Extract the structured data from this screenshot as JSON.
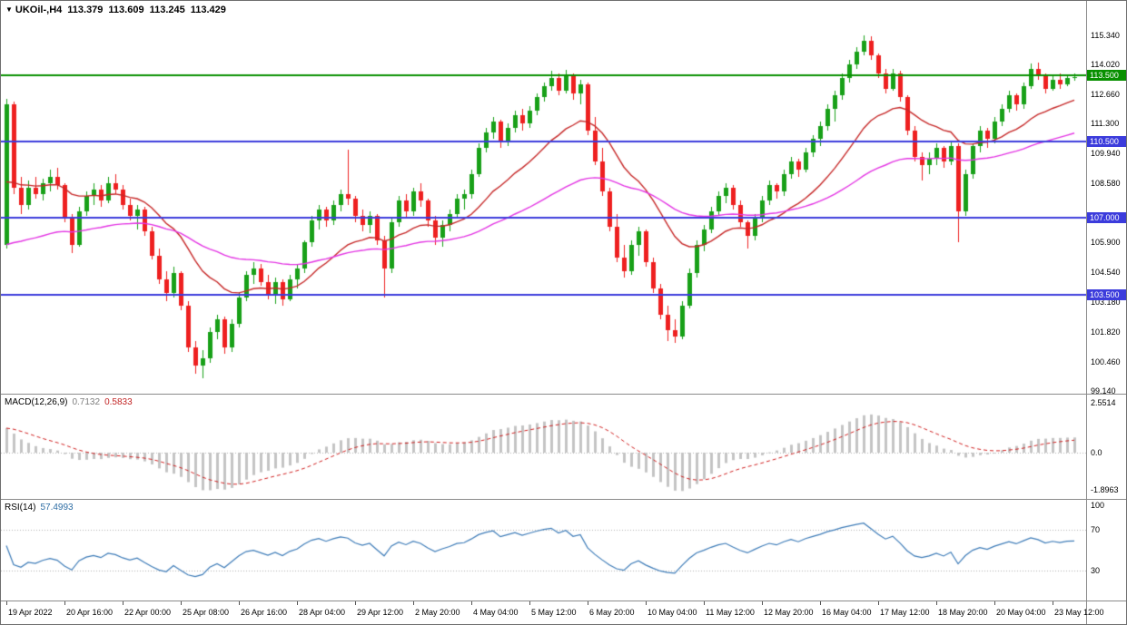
{
  "header": {
    "collapse_icon": "▼",
    "symbol_period": "UKOil-,H4",
    "open": "113.379",
    "high": "113.609",
    "low": "113.245",
    "close": "113.429"
  },
  "chart_data": {
    "type": "candlestick",
    "symbol": "UKOil-",
    "timeframe": "H4",
    "title": "UKOil-,H4 113.379 113.609 113.245 113.429",
    "main": {
      "visible_price_range": [
        99.0,
        116.9
      ],
      "price_axis_ticks": [
        "115.340",
        "114.020",
        "112.660",
        "111.300",
        "109.940",
        "108.580",
        "105.900",
        "104.540",
        "103.180",
        "101.820",
        "100.460",
        "99.140"
      ],
      "hlines": [
        {
          "price": 113.5,
          "label": "113.500",
          "color": "#089000"
        },
        {
          "price": 110.5,
          "label": "110.500",
          "color": "#3c3cdc"
        },
        {
          "price": 107.0,
          "label": "107.000",
          "color": "#3c3cdc"
        },
        {
          "price": 103.5,
          "label": "103.500",
          "color": "#3c3cdc"
        }
      ],
      "candles": [
        [
          105.8,
          112.45,
          105.6,
          112.2
        ],
        [
          112.2,
          112.3,
          108.1,
          108.4
        ],
        [
          108.4,
          108.9,
          107.2,
          107.6
        ],
        [
          107.6,
          108.7,
          107.4,
          108.4
        ],
        [
          108.4,
          108.9,
          107.9,
          108.1
        ],
        [
          108.1,
          108.8,
          107.8,
          108.6
        ],
        [
          108.6,
          109.2,
          108.2,
          108.9
        ],
        [
          108.9,
          109.3,
          108.3,
          108.5
        ],
        [
          108.5,
          108.6,
          106.8,
          107.0
        ],
        [
          107.0,
          107.2,
          105.4,
          105.8
        ],
        [
          105.8,
          107.5,
          105.7,
          107.3
        ],
        [
          107.3,
          108.2,
          107.1,
          108.0
        ],
        [
          108.0,
          108.6,
          107.6,
          108.3
        ],
        [
          108.3,
          108.5,
          107.5,
          107.8
        ],
        [
          107.8,
          108.9,
          107.7,
          108.6
        ],
        [
          108.6,
          109.0,
          108.1,
          108.3
        ],
        [
          108.3,
          108.5,
          107.4,
          107.6
        ],
        [
          107.6,
          107.9,
          106.9,
          107.1
        ],
        [
          107.1,
          107.6,
          106.5,
          107.4
        ],
        [
          107.4,
          107.5,
          106.2,
          106.4
        ],
        [
          106.4,
          106.6,
          105.1,
          105.3
        ],
        [
          105.3,
          105.6,
          104.0,
          104.2
        ],
        [
          104.2,
          104.6,
          103.2,
          103.6
        ],
        [
          103.6,
          104.8,
          103.4,
          104.5
        ],
        [
          104.5,
          104.6,
          102.8,
          103.0
        ],
        [
          103.0,
          103.2,
          100.9,
          101.1
        ],
        [
          101.1,
          101.4,
          99.9,
          100.3
        ],
        [
          100.3,
          101.0,
          99.7,
          100.6
        ],
        [
          100.6,
          102.0,
          100.4,
          101.8
        ],
        [
          101.8,
          102.6,
          101.5,
          102.4
        ],
        [
          102.4,
          102.5,
          100.8,
          101.1
        ],
        [
          101.1,
          102.4,
          100.9,
          102.2
        ],
        [
          102.2,
          103.6,
          102.0,
          103.4
        ],
        [
          103.4,
          104.6,
          103.2,
          104.4
        ],
        [
          104.4,
          105.0,
          104.0,
          104.7
        ],
        [
          104.7,
          104.9,
          103.9,
          104.1
        ],
        [
          104.1,
          104.4,
          103.3,
          103.5
        ],
        [
          103.5,
          104.3,
          103.1,
          104.1
        ],
        [
          104.1,
          104.2,
          103.0,
          103.3
        ],
        [
          103.3,
          104.4,
          103.2,
          104.2
        ],
        [
          104.2,
          104.9,
          103.8,
          104.7
        ],
        [
          104.7,
          106.0,
          104.5,
          105.9
        ],
        [
          105.9,
          107.1,
          105.7,
          106.9
        ],
        [
          106.9,
          107.6,
          106.5,
          107.4
        ],
        [
          107.4,
          107.5,
          106.6,
          106.9
        ],
        [
          106.9,
          107.8,
          106.7,
          107.6
        ],
        [
          107.6,
          108.3,
          107.3,
          108.1
        ],
        [
          108.1,
          110.1,
          107.6,
          107.9
        ],
        [
          107.9,
          108.0,
          106.8,
          107.1
        ],
        [
          107.1,
          107.4,
          106.4,
          106.7
        ],
        [
          106.7,
          107.3,
          106.3,
          107.1
        ],
        [
          107.1,
          107.2,
          105.8,
          106.0
        ],
        [
          106.0,
          106.2,
          103.4,
          104.7
        ],
        [
          104.7,
          107.0,
          104.5,
          106.8
        ],
        [
          106.8,
          108.0,
          106.6,
          107.8
        ],
        [
          107.8,
          108.1,
          107.0,
          107.3
        ],
        [
          107.3,
          108.4,
          107.1,
          108.2
        ],
        [
          108.2,
          108.6,
          107.5,
          107.8
        ],
        [
          107.8,
          107.9,
          106.6,
          106.9
        ],
        [
          106.9,
          107.1,
          105.8,
          106.1
        ],
        [
          106.1,
          106.9,
          105.7,
          106.7
        ],
        [
          106.7,
          107.4,
          106.4,
          107.2
        ],
        [
          107.2,
          108.1,
          107.0,
          107.9
        ],
        [
          107.9,
          108.3,
          107.4,
          108.1
        ],
        [
          108.1,
          109.2,
          107.9,
          109.0
        ],
        [
          109.0,
          110.4,
          108.9,
          110.2
        ],
        [
          110.2,
          111.1,
          110.0,
          110.9
        ],
        [
          110.9,
          111.6,
          110.6,
          111.4
        ],
        [
          111.4,
          111.5,
          110.2,
          110.5
        ],
        [
          110.5,
          111.3,
          110.3,
          111.1
        ],
        [
          111.1,
          111.9,
          110.9,
          111.7
        ],
        [
          111.7,
          112.0,
          111.0,
          111.3
        ],
        [
          111.3,
          112.1,
          111.1,
          111.9
        ],
        [
          111.9,
          112.7,
          111.7,
          112.5
        ],
        [
          112.5,
          113.2,
          112.3,
          113.0
        ],
        [
          113.0,
          113.7,
          112.8,
          113.4
        ],
        [
          113.4,
          113.6,
          112.6,
          112.8
        ],
        [
          112.8,
          113.75,
          112.7,
          113.5
        ],
        [
          113.5,
          113.6,
          112.4,
          112.7
        ],
        [
          112.7,
          113.3,
          112.2,
          113.1
        ],
        [
          113.1,
          113.2,
          110.8,
          111.0
        ],
        [
          111.0,
          111.6,
          109.4,
          109.6
        ],
        [
          109.6,
          110.2,
          108.0,
          108.2
        ],
        [
          108.2,
          108.4,
          106.4,
          106.6
        ],
        [
          106.6,
          107.2,
          105.0,
          105.2
        ],
        [
          105.2,
          105.8,
          104.3,
          104.6
        ],
        [
          104.6,
          106.0,
          104.4,
          105.8
        ],
        [
          105.8,
          106.6,
          105.3,
          106.4
        ],
        [
          106.4,
          106.5,
          104.8,
          105.0
        ],
        [
          105.0,
          105.2,
          103.6,
          103.8
        ],
        [
          103.8,
          104.0,
          102.4,
          102.6
        ],
        [
          102.6,
          103.0,
          101.4,
          101.9
        ],
        [
          101.9,
          102.4,
          101.3,
          101.6
        ],
        [
          101.6,
          103.2,
          101.5,
          103.0
        ],
        [
          103.0,
          104.7,
          102.9,
          104.5
        ],
        [
          104.5,
          106.0,
          104.3,
          105.8
        ],
        [
          105.8,
          106.7,
          105.5,
          106.5
        ],
        [
          106.5,
          107.5,
          106.3,
          107.3
        ],
        [
          107.3,
          108.2,
          107.1,
          108.0
        ],
        [
          108.0,
          108.6,
          107.7,
          108.4
        ],
        [
          108.4,
          108.5,
          107.4,
          107.6
        ],
        [
          107.6,
          107.8,
          106.6,
          106.8
        ],
        [
          106.8,
          106.9,
          105.6,
          106.2
        ],
        [
          106.2,
          107.2,
          106.0,
          107.0
        ],
        [
          107.0,
          108.0,
          106.8,
          107.8
        ],
        [
          107.8,
          108.7,
          107.6,
          108.5
        ],
        [
          108.5,
          108.6,
          107.9,
          108.2
        ],
        [
          108.2,
          109.2,
          108.0,
          109.0
        ],
        [
          109.0,
          109.8,
          108.8,
          109.6
        ],
        [
          109.6,
          109.7,
          108.9,
          109.2
        ],
        [
          109.2,
          110.2,
          109.1,
          110.0
        ],
        [
          110.0,
          110.8,
          109.8,
          110.6
        ],
        [
          110.6,
          111.4,
          110.3,
          111.2
        ],
        [
          111.2,
          112.2,
          111.0,
          112.0
        ],
        [
          112.0,
          112.8,
          111.4,
          112.6
        ],
        [
          112.6,
          113.6,
          112.4,
          113.4
        ],
        [
          113.4,
          114.2,
          113.2,
          114.0
        ],
        [
          114.0,
          114.8,
          113.8,
          114.6
        ],
        [
          114.6,
          115.34,
          114.4,
          115.1
        ],
        [
          115.1,
          115.3,
          114.2,
          114.4
        ],
        [
          114.4,
          114.5,
          113.4,
          113.6
        ],
        [
          113.6,
          113.8,
          112.7,
          112.9
        ],
        [
          112.9,
          113.8,
          112.8,
          113.6
        ],
        [
          113.6,
          113.7,
          112.3,
          112.5
        ],
        [
          112.5,
          112.6,
          110.8,
          111.0
        ],
        [
          111.0,
          111.2,
          109.6,
          109.8
        ],
        [
          109.8,
          110.0,
          108.7,
          109.4
        ],
        [
          109.4,
          110.0,
          109.0,
          109.7
        ],
        [
          109.7,
          110.4,
          109.4,
          110.2
        ],
        [
          110.2,
          110.3,
          109.3,
          109.6
        ],
        [
          109.6,
          110.5,
          109.4,
          110.3
        ],
        [
          110.3,
          110.4,
          105.9,
          107.3
        ],
        [
          107.3,
          109.2,
          107.1,
          109.0
        ],
        [
          109.0,
          110.4,
          108.8,
          110.3
        ],
        [
          110.3,
          111.2,
          110.0,
          111.0
        ],
        [
          111.0,
          111.1,
          110.2,
          110.6
        ],
        [
          110.6,
          111.6,
          110.4,
          111.4
        ],
        [
          111.4,
          112.2,
          111.2,
          112.0
        ],
        [
          112.0,
          112.8,
          111.8,
          112.6
        ],
        [
          112.6,
          112.7,
          111.9,
          112.2
        ],
        [
          112.2,
          113.2,
          112.0,
          113.0
        ],
        [
          113.0,
          114.05,
          112.9,
          113.8
        ],
        [
          113.8,
          114.1,
          113.3,
          113.5
        ],
        [
          113.5,
          113.6,
          112.7,
          112.9
        ],
        [
          112.9,
          113.5,
          112.8,
          113.3
        ],
        [
          113.3,
          113.6,
          112.9,
          113.1
        ],
        [
          113.1,
          113.55,
          113.0,
          113.4
        ],
        [
          113.379,
          113.609,
          113.245,
          113.429
        ]
      ]
    },
    "macd": {
      "label": "MACD(12,26,9)",
      "values": [
        "0.7132",
        "0.5833"
      ],
      "axis_ticks": [
        "2.5514",
        "0.0",
        "-1.8963"
      ],
      "axis_values": [
        2.5514,
        0.0,
        -1.8963
      ]
    },
    "rsi": {
      "label": "RSI(14)",
      "value": "57.4993",
      "axis_ticks": [
        "100",
        "70",
        "30"
      ],
      "axis_values": [
        100,
        70,
        30
      ],
      "levels": [
        70,
        30
      ]
    },
    "time_axis": [
      "19 Apr 2022",
      "20 Apr 16:00",
      "22 Apr 00:00",
      "25 Apr 08:00",
      "26 Apr 16:00",
      "28 Apr 04:00",
      "29 Apr 12:00",
      "2 May 20:00",
      "4 May 04:00",
      "5 May 12:00",
      "6 May 20:00",
      "10 May 04:00",
      "11 May 12:00",
      "12 May 20:00",
      "16 May 04:00",
      "17 May 12:00",
      "18 May 20:00",
      "20 May 04:00",
      "23 May 12:00"
    ],
    "legend_position": "none",
    "grid": "off",
    "colors": {
      "bull": "#18a018",
      "bear": "#ee2020",
      "ma_fast": "#c62828",
      "ma_slow": "#e335e3",
      "macd_hist": "#c4c4c4",
      "macd_signal": "#d02020",
      "rsi_line": "#3e7cb8",
      "level_dotted": "#b0b0b0",
      "hline_green": "#089000",
      "hline_blue": "#3c3cdc"
    }
  }
}
